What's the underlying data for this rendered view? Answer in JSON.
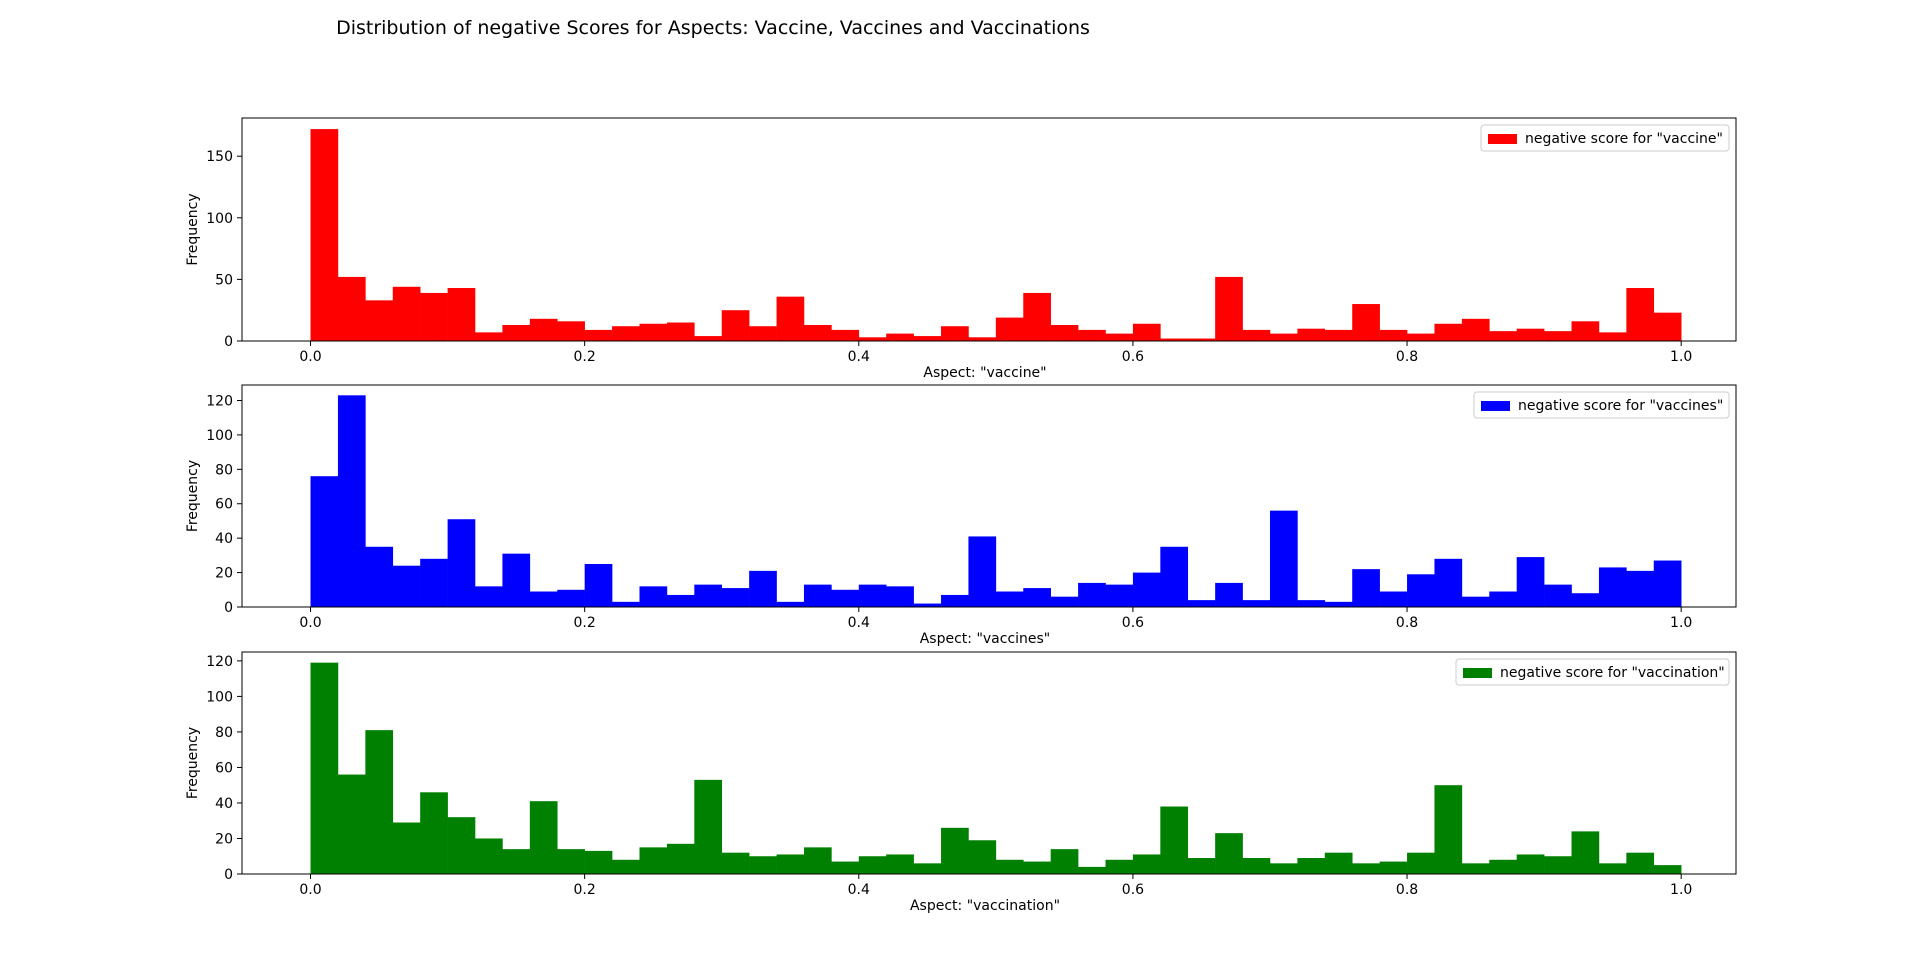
{
  "figure": {
    "title": "Distribution of negative Scores for Aspects: Vaccine, Vaccines and Vaccinations"
  },
  "chart_data": [
    {
      "type": "bar",
      "subtype": "histogram",
      "bin_width": 0.02,
      "bin_start": 0.0,
      "xlim": [
        -0.05,
        1.04
      ],
      "ylim": [
        0,
        181
      ],
      "xticks": [
        "0.0",
        "0.2",
        "0.4",
        "0.6",
        "0.8",
        "1.0"
      ],
      "yticks": [
        "0",
        "50",
        "100",
        "150"
      ],
      "xlabel": "Aspect: \"vaccine\"",
      "ylabel": "Frequency",
      "legend": {
        "label": "negative score for \"vaccine\"",
        "position": "upper right"
      },
      "color": "#ff0000",
      "values": [
        172,
        52,
        33,
        44,
        39,
        43,
        7,
        13,
        18,
        16,
        9,
        12,
        14,
        15,
        4,
        25,
        12,
        36,
        13,
        9,
        3,
        6,
        4,
        12,
        3,
        19,
        39,
        13,
        9,
        6,
        14,
        2,
        2,
        52,
        9,
        6,
        10,
        9,
        30,
        9,
        6,
        14,
        18,
        8,
        10,
        8,
        16,
        7,
        43,
        23
      ]
    },
    {
      "type": "bar",
      "subtype": "histogram",
      "bin_width": 0.02,
      "bin_start": 0.0,
      "xlim": [
        -0.05,
        1.04
      ],
      "ylim": [
        0,
        129
      ],
      "xticks": [
        "0.0",
        "0.2",
        "0.4",
        "0.6",
        "0.8",
        "1.0"
      ],
      "yticks": [
        "0",
        "20",
        "40",
        "60",
        "80",
        "100",
        "120"
      ],
      "xlabel": "Aspect: \"vaccines\"",
      "ylabel": "Frequency",
      "legend": {
        "label": "negative score for \"vaccines\"",
        "position": "upper right"
      },
      "color": "#0000ff",
      "values": [
        76,
        123,
        35,
        24,
        28,
        51,
        12,
        31,
        9,
        10,
        25,
        3,
        12,
        7,
        13,
        11,
        21,
        3,
        13,
        10,
        13,
        12,
        2,
        7,
        41,
        9,
        11,
        6,
        14,
        13,
        20,
        35,
        4,
        14,
        4,
        56,
        4,
        3,
        22,
        9,
        19,
        28,
        6,
        9,
        29,
        13,
        8,
        23,
        21,
        27
      ]
    },
    {
      "type": "bar",
      "subtype": "histogram",
      "bin_width": 0.02,
      "bin_start": 0.0,
      "xlim": [
        -0.05,
        1.04
      ],
      "ylim": [
        0,
        125
      ],
      "xticks": [
        "0.0",
        "0.2",
        "0.4",
        "0.6",
        "0.8",
        "1.0"
      ],
      "yticks": [
        "0",
        "20",
        "40",
        "60",
        "80",
        "100",
        "120"
      ],
      "xlabel": "Aspect: \"vaccination\"",
      "ylabel": "Frequency",
      "legend": {
        "label": "negative score for \"vaccination\"",
        "position": "upper right"
      },
      "color": "#008000",
      "values": [
        119,
        56,
        81,
        29,
        46,
        32,
        20,
        14,
        41,
        14,
        13,
        8,
        15,
        17,
        53,
        12,
        10,
        11,
        15,
        7,
        10,
        11,
        6,
        26,
        19,
        8,
        7,
        14,
        4,
        8,
        11,
        38,
        9,
        23,
        9,
        6,
        9,
        12,
        6,
        7,
        12,
        50,
        6,
        8,
        11,
        10,
        24,
        6,
        12,
        5
      ]
    }
  ]
}
